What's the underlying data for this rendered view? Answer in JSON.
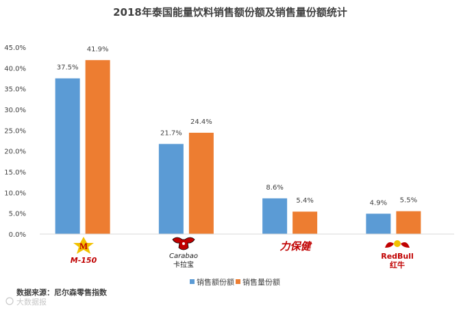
{
  "chart_data": {
    "type": "bar",
    "title": "2018年泰国能量饮料销售额份额及销售量份额统计",
    "xlabel": "",
    "ylabel": "",
    "ylim": [
      0,
      45
    ],
    "yticks": [
      "0.0%",
      "5.0%",
      "10.0%",
      "15.0%",
      "20.0%",
      "25.0%",
      "30.0%",
      "35.0%",
      "40.0%",
      "45.0%"
    ],
    "grid": false,
    "legend_position": "bottom",
    "categories": [
      "M-150",
      "Carabao 卡拉宝",
      "力保健",
      "RedBull 红牛"
    ],
    "series": [
      {
        "name": "销售额份额",
        "color": "#5B9BD5",
        "values": [
          37.5,
          21.7,
          8.6,
          4.9
        ],
        "labels": [
          "37.5%",
          "21.7%",
          "8.6%",
          "4.9%"
        ]
      },
      {
        "name": "销售量份额",
        "color": "#ED7D31",
        "values": [
          41.9,
          24.4,
          5.4,
          5.5
        ],
        "labels": [
          "41.9%",
          "24.4%",
          "5.4%",
          "5.5%"
        ]
      }
    ]
  },
  "logos": [
    {
      "text": "M-150",
      "icon": "m150-logo"
    },
    {
      "text": "Carabao",
      "text2": "卡拉宝",
      "icon": "carabao-bull-logo"
    },
    {
      "text": "力保健",
      "icon": "lipovitan-logo"
    },
    {
      "text": "RedBull",
      "text2": "红牛",
      "icon": "redbull-logo"
    }
  ],
  "source": "数据来源：尼尔森零售指数",
  "watermark": "大数据报"
}
